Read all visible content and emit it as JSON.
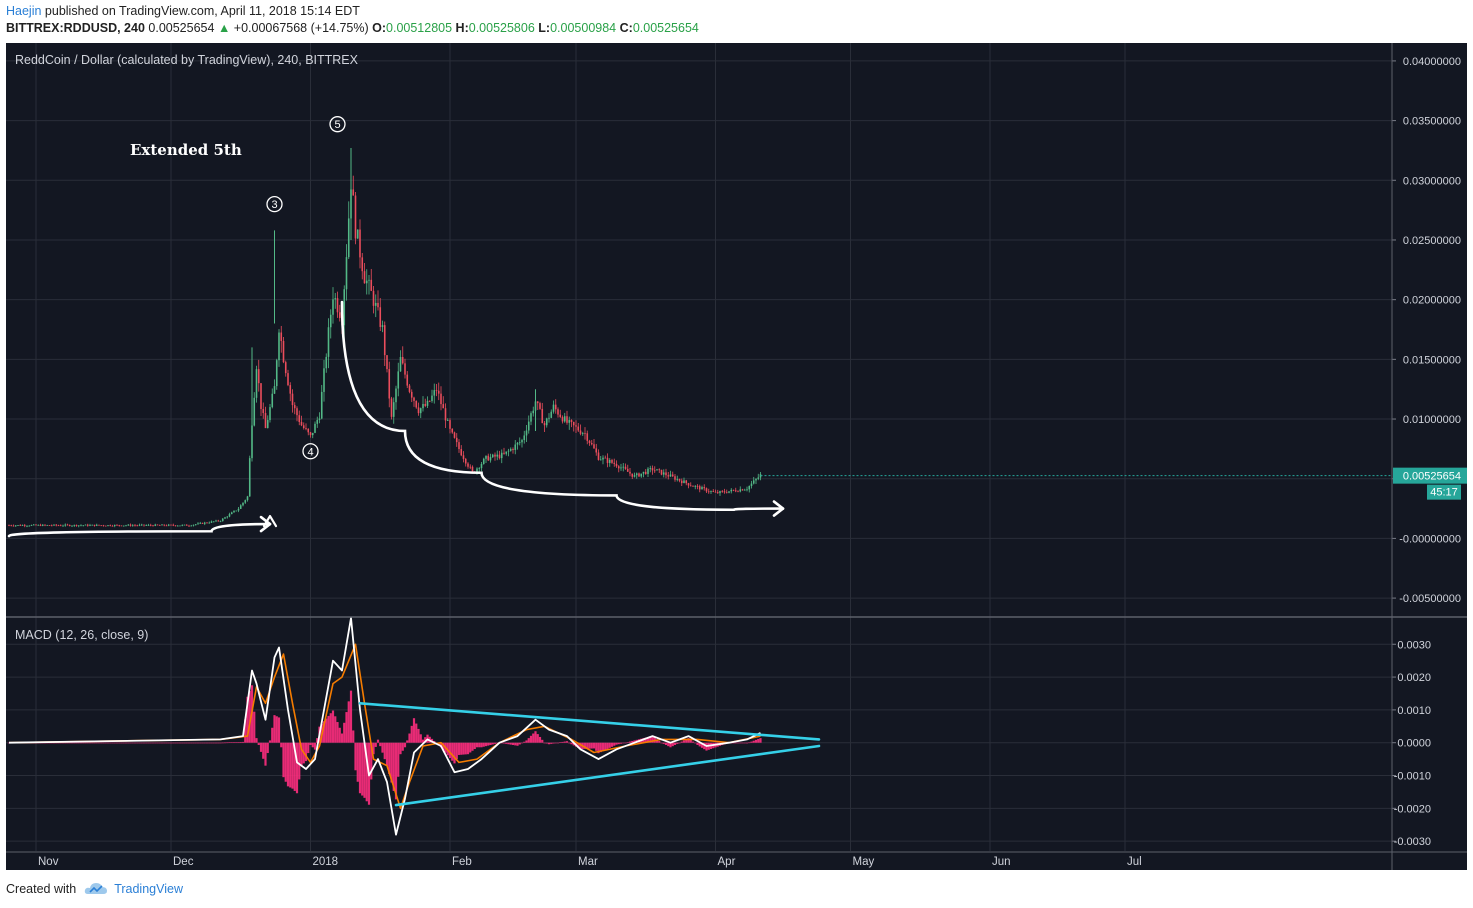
{
  "header": {
    "author": "Haejin",
    "published_text": "published on TradingView.com, April 11, 2018 15:14 EDT",
    "symbol": "BITTREX:RDDUSD, 240",
    "last": "0.00525654",
    "change": "+0.00067568 (+14.75%)",
    "o_label": "O:",
    "o": "0.00512805",
    "h_label": "H:",
    "h": "0.00525806",
    "l_label": "L:",
    "l": "0.00500984",
    "c_label": "C:",
    "c": "0.00525654"
  },
  "footer": {
    "created_with": "Created with",
    "brand": "TradingView"
  },
  "colors": {
    "background": "#131722",
    "grid": "#2a2e39",
    "up_candle": "#53b987",
    "down_candle": "#eb4d5c",
    "price_tag": "#26a69a",
    "macd_line": "#ffffff",
    "signal_line": "#f57c00",
    "histogram": "#ff2e7e",
    "trendline": "#35d0e8",
    "annotation": "#ffffff"
  },
  "chart_data": [
    {
      "type": "candlestick",
      "title": "ReddCoin / Dollar (calculated by TradingView), 240, BITTREX",
      "x_ticks": [
        "Nov",
        "Dec",
        "2018",
        "Feb",
        "Mar",
        "Apr",
        "May",
        "Jun",
        "Jul"
      ],
      "y_ticks": [
        "0.04000000",
        "0.03500000",
        "0.03000000",
        "0.02500000",
        "0.02000000",
        "0.01500000",
        "0.01000000",
        "0.00500000",
        "-0.00000000",
        "-0.00500000"
      ],
      "ylim": [
        -0.0065,
        0.0415
      ],
      "last_price_label": "0.00525654",
      "countdown_label": "45:17",
      "price_path": [
        [
          "2017-10-26",
          0.0011
        ],
        [
          "2017-11-10",
          0.0011
        ],
        [
          "2017-11-25",
          0.0011
        ],
        [
          "2017-12-05",
          0.0011
        ],
        [
          "2017-12-12",
          0.0015
        ],
        [
          "2017-12-16",
          0.0025
        ],
        [
          "2017-12-18",
          0.0035
        ],
        [
          "2017-12-19",
          0.0098
        ],
        [
          "2017-12-20",
          0.0146
        ],
        [
          "2017-12-21",
          0.0111
        ],
        [
          "2017-12-22",
          0.0092
        ],
        [
          "2017-12-24",
          0.0126
        ],
        [
          "2017-12-25",
          0.0178
        ],
        [
          "2017-12-26",
          0.0152
        ],
        [
          "2017-12-28",
          0.0112
        ],
        [
          "2017-12-30",
          0.0095
        ],
        [
          "2018-01-01",
          0.0085
        ],
        [
          "2018-01-03",
          0.0104
        ],
        [
          "2018-01-05",
          0.0172
        ],
        [
          "2018-01-06",
          0.0205
        ],
        [
          "2018-01-08",
          0.0185
        ],
        [
          "2018-01-09",
          0.024
        ],
        [
          "2018-01-10",
          0.03
        ],
        [
          "2018-01-11",
          0.026
        ],
        [
          "2018-01-13",
          0.022
        ],
        [
          "2018-01-15",
          0.02
        ],
        [
          "2018-01-17",
          0.0175
        ],
        [
          "2018-01-19",
          0.01
        ],
        [
          "2018-01-21",
          0.015
        ],
        [
          "2018-01-23",
          0.0125
        ],
        [
          "2018-01-25",
          0.0108
        ],
        [
          "2018-01-27",
          0.0112
        ],
        [
          "2018-01-29",
          0.0125
        ],
        [
          "2018-02-01",
          0.009
        ],
        [
          "2018-02-03",
          0.0075
        ],
        [
          "2018-02-06",
          0.0055
        ],
        [
          "2018-02-09",
          0.0067
        ],
        [
          "2018-02-13",
          0.007
        ],
        [
          "2018-02-17",
          0.0082
        ],
        [
          "2018-02-20",
          0.0115
        ],
        [
          "2018-02-22",
          0.0095
        ],
        [
          "2018-02-24",
          0.011
        ],
        [
          "2018-02-27",
          0.0097
        ],
        [
          "2018-03-03",
          0.0088
        ],
        [
          "2018-03-06",
          0.0068
        ],
        [
          "2018-03-10",
          0.0062
        ],
        [
          "2018-03-14",
          0.0052
        ],
        [
          "2018-03-18",
          0.0058
        ],
        [
          "2018-03-22",
          0.0052
        ],
        [
          "2018-03-27",
          0.0044
        ],
        [
          "2018-04-01",
          0.0038
        ],
        [
          "2018-04-05",
          0.004
        ],
        [
          "2018-04-08",
          0.0042
        ],
        [
          "2018-04-11",
          0.0053
        ]
      ],
      "wave_labels": [
        {
          "label": "3",
          "date": "2017-12-24",
          "price": 0.028
        },
        {
          "label": "4",
          "date": "2018-01-01",
          "price": 0.0073
        },
        {
          "label": "5",
          "date": "2018-01-07",
          "price": 0.0347
        }
      ],
      "annotations": [
        {
          "text": "Extended 5th",
          "date": "2017-11-30",
          "price": 0.0328
        }
      ],
      "drawings": [
        {
          "kind": "curved-arrow",
          "points": [
            [
              "2017-10-26",
              0.0002
            ],
            [
              "2017-12-10",
              0.0006
            ],
            [
              "2017-12-23",
              0.0012
            ]
          ]
        },
        {
          "kind": "curved-arrow",
          "points": [
            [
              "2018-01-08",
              0.0198
            ],
            [
              "2018-01-22",
              0.009
            ],
            [
              "2018-02-08",
              0.0055
            ],
            [
              "2018-03-10",
              0.0036
            ],
            [
              "2018-04-05",
              0.0024
            ],
            [
              "2018-04-16",
              0.0025
            ]
          ]
        }
      ]
    },
    {
      "type": "line",
      "title": "MACD (12, 26, close, 9)",
      "y_ticks": [
        "0.0030",
        "0.0020",
        "0.0010",
        "0.0000",
        "-0.0010",
        "-0.0020",
        "-0.0030"
      ],
      "ylim": [
        -0.0033,
        0.0038
      ],
      "series": [
        {
          "kind": "macd",
          "points": [
            [
              "2017-10-26",
              0
            ],
            [
              "2017-12-12",
              0.0001
            ],
            [
              "2017-12-17",
              0.0002
            ],
            [
              "2017-12-19",
              0.0022
            ],
            [
              "2017-12-20",
              0.0018
            ],
            [
              "2017-12-22",
              0.0007
            ],
            [
              "2017-12-24",
              0.0026
            ],
            [
              "2017-12-25",
              0.0029
            ],
            [
              "2017-12-27",
              0.001
            ],
            [
              "2017-12-29",
              -0.0006
            ],
            [
              "2017-12-31",
              -0.0008
            ],
            [
              "2018-01-02",
              -0.0005
            ],
            [
              "2018-01-04",
              0.001
            ],
            [
              "2018-01-06",
              0.0025
            ],
            [
              "2018-01-08",
              0.0022
            ],
            [
              "2018-01-10",
              0.0038
            ],
            [
              "2018-01-12",
              0.001
            ],
            [
              "2018-01-14",
              -0.001
            ],
            [
              "2018-01-16",
              -0.0005
            ],
            [
              "2018-01-18",
              -0.0012
            ],
            [
              "2018-01-20",
              -0.0028
            ],
            [
              "2018-01-22",
              -0.0017
            ],
            [
              "2018-01-24",
              -0.0003
            ],
            [
              "2018-01-27",
              0.0001
            ],
            [
              "2018-01-30",
              -0.0001
            ],
            [
              "2018-02-02",
              -0.0009
            ],
            [
              "2018-02-05",
              -0.0008
            ],
            [
              "2018-02-08",
              -0.0005
            ],
            [
              "2018-02-12",
              0.0
            ],
            [
              "2018-02-16",
              0.0002
            ],
            [
              "2018-02-20",
              0.0007
            ],
            [
              "2018-02-23",
              0.0004
            ],
            [
              "2018-02-27",
              0.0002
            ],
            [
              "2018-03-02",
              -0.0002
            ],
            [
              "2018-03-06",
              -0.0005
            ],
            [
              "2018-03-10",
              -0.0002
            ],
            [
              "2018-03-14",
              0.0
            ],
            [
              "2018-03-18",
              0.0002
            ],
            [
              "2018-03-22",
              0.0
            ],
            [
              "2018-03-26",
              0.0002
            ],
            [
              "2018-03-30",
              -0.0001
            ],
            [
              "2018-04-04",
              0.0
            ],
            [
              "2018-04-08",
              0.0001
            ],
            [
              "2018-04-11",
              0.0003
            ]
          ]
        },
        {
          "kind": "signal",
          "points": [
            [
              "2017-10-26",
              0
            ],
            [
              "2017-12-12",
              0.0001
            ],
            [
              "2017-12-18",
              0.0002
            ],
            [
              "2017-12-20",
              0.0017
            ],
            [
              "2017-12-22",
              0.0012
            ],
            [
              "2017-12-24",
              0.002
            ],
            [
              "2017-12-26",
              0.0027
            ],
            [
              "2017-12-28",
              0.0012
            ],
            [
              "2017-12-30",
              -0.0002
            ],
            [
              "2018-01-01",
              -0.0006
            ],
            [
              "2018-01-03",
              -0.0001
            ],
            [
              "2018-01-06",
              0.0018
            ],
            [
              "2018-01-08",
              0.002
            ],
            [
              "2018-01-11",
              0.003
            ],
            [
              "2018-01-13",
              0.0012
            ],
            [
              "2018-01-15",
              -0.0005
            ],
            [
              "2018-01-18",
              -0.0007
            ],
            [
              "2018-01-21",
              -0.002
            ],
            [
              "2018-01-23",
              -0.0012
            ],
            [
              "2018-01-26",
              -0.0001
            ],
            [
              "2018-01-30",
              0.0
            ],
            [
              "2018-02-03",
              -0.0006
            ],
            [
              "2018-02-07",
              -0.0005
            ],
            [
              "2018-02-12",
              0.0
            ],
            [
              "2018-02-18",
              0.0004
            ],
            [
              "2018-02-22",
              0.0005
            ],
            [
              "2018-02-28",
              0.0001
            ],
            [
              "2018-03-05",
              -0.0003
            ],
            [
              "2018-03-12",
              -0.0001
            ],
            [
              "2018-03-20",
              0.0001
            ],
            [
              "2018-03-28",
              0.0001
            ],
            [
              "2018-04-04",
              0.0
            ],
            [
              "2018-04-11",
              0.0002
            ]
          ]
        }
      ],
      "trendlines": [
        {
          "from": [
            "2018-01-12",
            0.0012
          ],
          "to": [
            "2018-04-24",
            0.0001
          ]
        },
        {
          "from": [
            "2018-01-20",
            -0.0019
          ],
          "to": [
            "2018-04-24",
            -0.0001
          ]
        }
      ]
    }
  ]
}
